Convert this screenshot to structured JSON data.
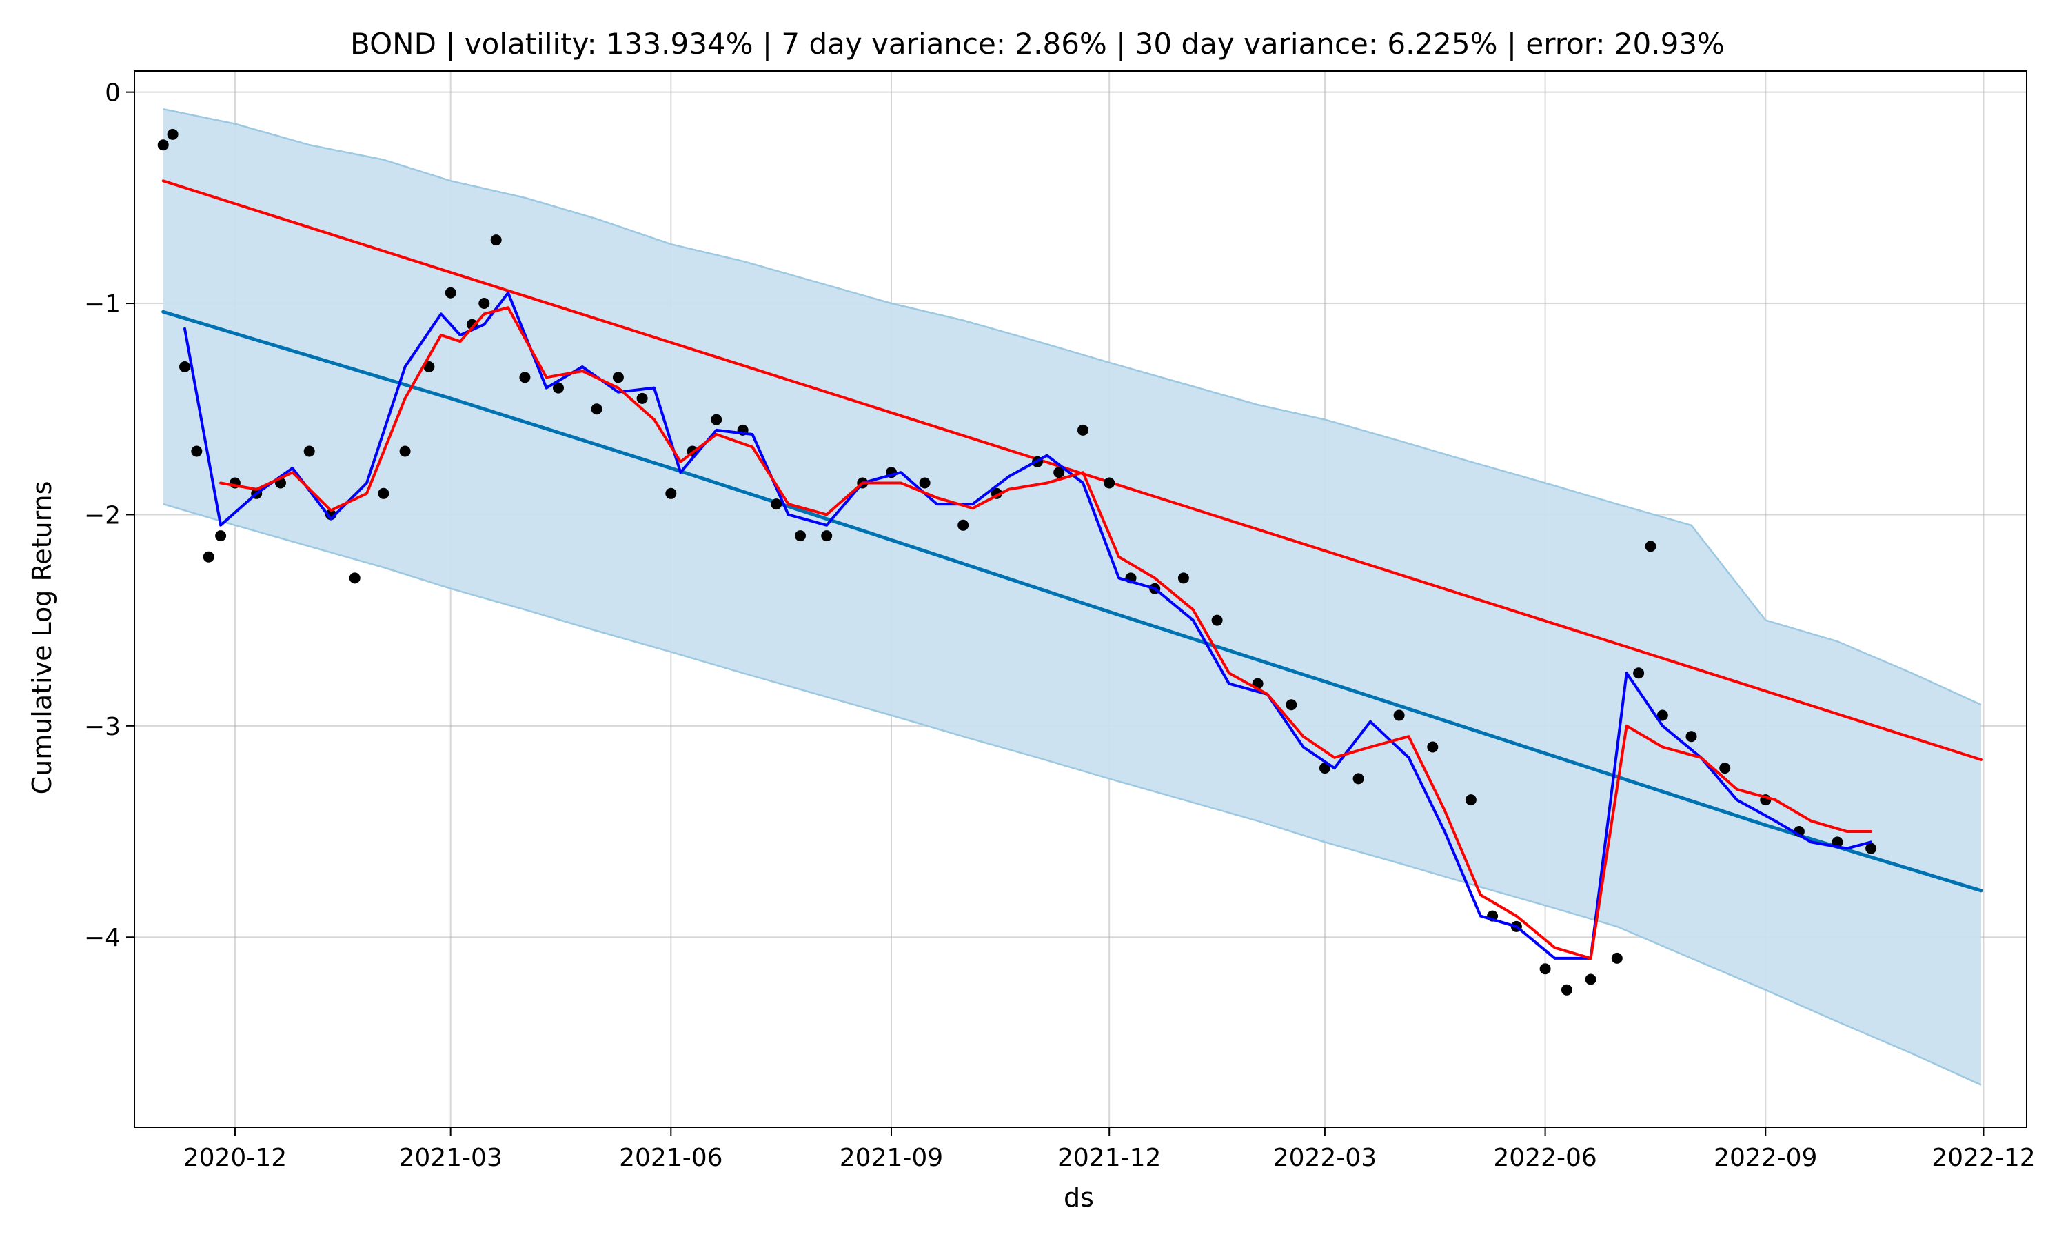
{
  "chart_data": {
    "type": "line",
    "title": "BOND | volatility: 133.934% | 7 day variance: 2.86% | 30 day variance: 6.225% | error: 20.93%",
    "xlabel": "ds",
    "ylabel": "Cumulative Log Returns",
    "x_type": "date",
    "xlim": [
      "2020-10-20",
      "2022-12-19"
    ],
    "ylim": [
      -4.9,
      0.1
    ],
    "x_ticks": [
      "2020-12",
      "2021-03",
      "2021-06",
      "2021-09",
      "2021-12",
      "2022-03",
      "2022-06",
      "2022-09",
      "2022-12"
    ],
    "y_ticks": [
      0,
      -1,
      -2,
      -3,
      -4
    ],
    "y_tick_labels": [
      "0",
      "−1",
      "−2",
      "−3",
      "−4"
    ],
    "grid": true,
    "colors": {
      "band_fill": "#c9e0ef",
      "band_edge": "#9cc8e2",
      "forecast": "#0072b2",
      "trend": "#ff0000",
      "ma_short": "#0000ff",
      "ma_long": "#ff0000",
      "points": "#000000"
    },
    "series": [
      {
        "kind": "band",
        "x": [
          "2020-11-01",
          "2020-12-01",
          "2021-01-01",
          "2021-02-01",
          "2021-03-01",
          "2021-04-01",
          "2021-05-01",
          "2021-06-01",
          "2021-07-01",
          "2021-08-01",
          "2021-09-01",
          "2021-10-01",
          "2021-11-01",
          "2021-12-01",
          "2022-01-01",
          "2022-02-01",
          "2022-03-01",
          "2022-04-01",
          "2022-05-01",
          "2022-06-01",
          "2022-07-01",
          "2022-08-01",
          "2022-09-01",
          "2022-10-01",
          "2022-11-01",
          "2022-11-30"
        ],
        "upper": [
          -0.08,
          -0.15,
          -0.25,
          -0.32,
          -0.42,
          -0.5,
          -0.6,
          -0.72,
          -0.8,
          -0.9,
          -1.0,
          -1.08,
          -1.18,
          -1.28,
          -1.38,
          -1.48,
          -1.55,
          -1.65,
          -1.75,
          -1.85,
          -1.95,
          -2.05,
          -2.5,
          -2.6,
          -2.75,
          -2.9
        ],
        "lower": [
          -1.95,
          -2.05,
          -2.15,
          -2.25,
          -2.35,
          -2.45,
          -2.55,
          -2.65,
          -2.75,
          -2.85,
          -2.95,
          -3.05,
          -3.15,
          -3.25,
          -3.35,
          -3.45,
          -3.55,
          -3.65,
          -3.75,
          -3.85,
          -3.95,
          -4.1,
          -4.25,
          -4.4,
          -4.55,
          -4.7
        ]
      },
      {
        "kind": "line",
        "role": "forecast",
        "x": [
          "2020-11-01",
          "2021-03-01",
          "2021-06-01",
          "2021-09-01",
          "2021-12-01",
          "2022-03-01",
          "2022-06-01",
          "2022-09-01",
          "2022-11-30"
        ],
        "y": [
          -1.04,
          -1.45,
          -1.78,
          -2.12,
          -2.46,
          -2.79,
          -3.13,
          -3.47,
          -3.78
        ]
      },
      {
        "kind": "line",
        "role": "trend",
        "x": [
          "2020-11-01",
          "2022-11-30"
        ],
        "y": [
          -0.42,
          -3.16
        ]
      },
      {
        "kind": "line",
        "role": "ma_short",
        "x": [
          "2020-11-10",
          "2020-11-25",
          "2020-12-10",
          "2020-12-25",
          "2021-01-10",
          "2021-01-25",
          "2021-02-10",
          "2021-02-25",
          "2021-03-05",
          "2021-03-15",
          "2021-03-25",
          "2021-04-10",
          "2021-04-25",
          "2021-05-10",
          "2021-05-25",
          "2021-06-05",
          "2021-06-20",
          "2021-07-05",
          "2021-07-20",
          "2021-08-05",
          "2021-08-20",
          "2021-09-05",
          "2021-09-20",
          "2021-10-05",
          "2021-10-20",
          "2021-11-05",
          "2021-11-20",
          "2021-12-05",
          "2021-12-20",
          "2022-01-05",
          "2022-01-20",
          "2022-02-05",
          "2022-02-20",
          "2022-03-05",
          "2022-03-20",
          "2022-04-05",
          "2022-04-20",
          "2022-05-05",
          "2022-05-20",
          "2022-06-05",
          "2022-06-20",
          "2022-07-05",
          "2022-07-20",
          "2022-08-05",
          "2022-08-20",
          "2022-09-05",
          "2022-09-20",
          "2022-10-05",
          "2022-10-15"
        ],
        "y": [
          -1.12,
          -2.05,
          -1.9,
          -1.78,
          -2.02,
          -1.85,
          -1.3,
          -1.05,
          -1.15,
          -1.1,
          -0.95,
          -1.4,
          -1.3,
          -1.42,
          -1.4,
          -1.8,
          -1.6,
          -1.62,
          -2.0,
          -2.05,
          -1.85,
          -1.8,
          -1.95,
          -1.95,
          -1.82,
          -1.72,
          -1.85,
          -2.3,
          -2.35,
          -2.5,
          -2.8,
          -2.85,
          -3.1,
          -3.2,
          -2.98,
          -3.15,
          -3.5,
          -3.9,
          -3.95,
          -4.1,
          -4.1,
          -2.75,
          -3.0,
          -3.15,
          -3.35,
          -3.45,
          -3.55,
          -3.58,
          -3.55
        ]
      },
      {
        "kind": "line",
        "role": "ma_long",
        "x": [
          "2020-11-25",
          "2020-12-10",
          "2020-12-25",
          "2021-01-10",
          "2021-01-25",
          "2021-02-10",
          "2021-02-25",
          "2021-03-05",
          "2021-03-15",
          "2021-03-25",
          "2021-04-10",
          "2021-04-25",
          "2021-05-10",
          "2021-05-25",
          "2021-06-05",
          "2021-06-20",
          "2021-07-05",
          "2021-07-20",
          "2021-08-05",
          "2021-08-20",
          "2021-09-05",
          "2021-09-20",
          "2021-10-05",
          "2021-10-20",
          "2021-11-05",
          "2021-11-20",
          "2021-12-05",
          "2021-12-20",
          "2022-01-05",
          "2022-01-20",
          "2022-02-05",
          "2022-02-20",
          "2022-03-05",
          "2022-03-20",
          "2022-04-05",
          "2022-04-20",
          "2022-05-05",
          "2022-05-20",
          "2022-06-05",
          "2022-06-20",
          "2022-07-05",
          "2022-07-20",
          "2022-08-05",
          "2022-08-20",
          "2022-09-05",
          "2022-09-20",
          "2022-10-05",
          "2022-10-15"
        ],
        "y": [
          -1.85,
          -1.88,
          -1.8,
          -1.98,
          -1.9,
          -1.45,
          -1.15,
          -1.18,
          -1.05,
          -1.02,
          -1.35,
          -1.32,
          -1.4,
          -1.55,
          -1.75,
          -1.62,
          -1.68,
          -1.95,
          -2.0,
          -1.85,
          -1.85,
          -1.92,
          -1.97,
          -1.88,
          -1.85,
          -1.8,
          -2.2,
          -2.3,
          -2.45,
          -2.75,
          -2.85,
          -3.05,
          -3.15,
          -3.1,
          -3.05,
          -3.4,
          -3.8,
          -3.9,
          -4.05,
          -4.1,
          -3.0,
          -3.1,
          -3.15,
          -3.3,
          -3.35,
          -3.45,
          -3.5,
          -3.5
        ]
      },
      {
        "kind": "scatter",
        "role": "observed",
        "x": [
          "2020-11-01",
          "2020-11-05",
          "2020-11-10",
          "2020-11-15",
          "2020-11-20",
          "2020-11-25",
          "2020-12-01",
          "2020-12-10",
          "2020-12-20",
          "2021-01-01",
          "2021-01-10",
          "2021-01-20",
          "2021-02-01",
          "2021-02-10",
          "2021-02-20",
          "2021-03-01",
          "2021-03-10",
          "2021-03-15",
          "2021-03-20",
          "2021-04-01",
          "2021-04-15",
          "2021-05-01",
          "2021-05-10",
          "2021-05-20",
          "2021-06-01",
          "2021-06-10",
          "2021-06-20",
          "2021-07-01",
          "2021-07-15",
          "2021-07-25",
          "2021-08-05",
          "2021-08-20",
          "2021-09-01",
          "2021-09-15",
          "2021-10-01",
          "2021-10-15",
          "2021-11-01",
          "2021-11-10",
          "2021-11-20",
          "2021-12-01",
          "2021-12-10",
          "2021-12-20",
          "2022-01-01",
          "2022-01-15",
          "2022-02-01",
          "2022-02-15",
          "2022-03-01",
          "2022-03-15",
          "2022-04-01",
          "2022-04-15",
          "2022-05-01",
          "2022-05-10",
          "2022-05-20",
          "2022-06-01",
          "2022-06-10",
          "2022-06-20",
          "2022-07-01",
          "2022-07-10",
          "2022-07-15",
          "2022-07-20",
          "2022-08-01",
          "2022-08-15",
          "2022-09-01",
          "2022-09-15",
          "2022-10-01",
          "2022-10-15"
        ],
        "y": [
          -0.25,
          -0.2,
          -1.3,
          -1.7,
          -2.2,
          -2.1,
          -1.85,
          -1.9,
          -1.85,
          -1.7,
          -2.0,
          -2.3,
          -1.9,
          -1.7,
          -1.3,
          -0.95,
          -1.1,
          -1.0,
          -0.7,
          -1.35,
          -1.4,
          -1.5,
          -1.35,
          -1.45,
          -1.9,
          -1.7,
          -1.55,
          -1.6,
          -1.95,
          -2.1,
          -2.1,
          -1.85,
          -1.8,
          -1.85,
          -2.05,
          -1.9,
          -1.75,
          -1.8,
          -1.6,
          -1.85,
          -2.3,
          -2.35,
          -2.3,
          -2.5,
          -2.8,
          -2.9,
          -3.2,
          -3.25,
          -2.95,
          -3.1,
          -3.35,
          -3.9,
          -3.95,
          -4.15,
          -4.25,
          -4.2,
          -4.1,
          -2.75,
          -2.15,
          -2.95,
          -3.05,
          -3.2,
          -3.35,
          -3.5,
          -3.55,
          -3.58
        ]
      }
    ]
  }
}
